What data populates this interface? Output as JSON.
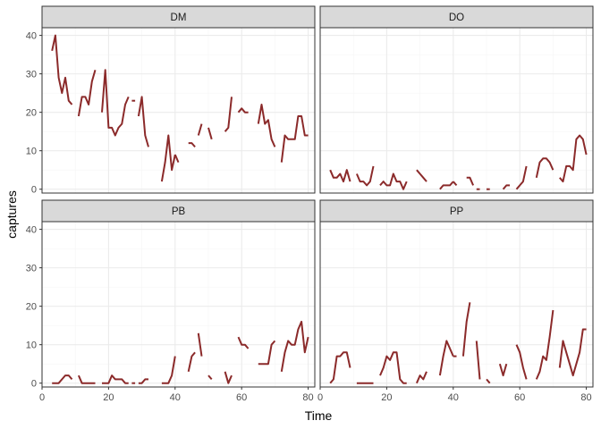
{
  "chart_data": {
    "type": "line",
    "facet_layout": "2x2 grid",
    "xlabel": "Time",
    "ylabel": "captures",
    "xlim": [
      0,
      82
    ],
    "ylim": [
      -1,
      42
    ],
    "x_ticks": [
      0,
      20,
      40,
      60,
      80
    ],
    "y_ticks": [
      0,
      10,
      20,
      30,
      40
    ],
    "grid": true,
    "legend": "none",
    "line_color": "#8B2A2A",
    "panels": [
      {
        "label": "DM",
        "segments": [
          {
            "x": [
              3,
              4,
              5,
              6,
              7,
              8,
              9
            ],
            "y": [
              36,
              40,
              29,
              25,
              29,
              23,
              22
            ]
          },
          {
            "x": [
              11,
              12,
              13,
              14,
              15,
              16
            ],
            "y": [
              19,
              24,
              24,
              22,
              28,
              31
            ]
          },
          {
            "x": [
              18,
              19,
              20,
              21,
              22,
              23,
              24,
              25,
              26
            ],
            "y": [
              20,
              31,
              16,
              16,
              14,
              16,
              17,
              22,
              24
            ]
          },
          {
            "x": [
              27,
              28
            ],
            "y": [
              23,
              23
            ]
          },
          {
            "x": [
              29,
              30,
              31,
              32
            ],
            "y": [
              19,
              24,
              14,
              11
            ]
          },
          {
            "x": [
              36,
              37,
              38,
              39,
              40
            ],
            "y": [
              2,
              7,
              14,
              5,
              9
            ]
          },
          {
            "x": [
              40,
              41
            ],
            "y": [
              9,
              7
            ]
          },
          {
            "x": [
              44,
              45,
              46
            ],
            "y": [
              12,
              12,
              11
            ]
          },
          {
            "x": [
              47,
              48
            ],
            "y": [
              14,
              17
            ]
          },
          {
            "x": [
              50,
              51
            ],
            "y": [
              16,
              13
            ]
          },
          {
            "x": [
              55,
              56,
              57
            ],
            "y": [
              15,
              16,
              24
            ]
          },
          {
            "x": [
              59,
              60,
              61,
              62
            ],
            "y": [
              20,
              21,
              20,
              20
            ]
          },
          {
            "x": [
              65,
              66,
              67,
              68,
              69,
              70
            ],
            "y": [
              17,
              22,
              17,
              18,
              13,
              11
            ]
          },
          {
            "x": [
              72,
              73,
              74,
              75,
              76,
              77,
              78,
              79,
              80
            ],
            "y": [
              7,
              14,
              13,
              13,
              13,
              19,
              19,
              14,
              14
            ]
          }
        ]
      },
      {
        "label": "DO",
        "segments": [
          {
            "x": [
              3,
              4,
              5,
              6,
              7,
              8,
              9
            ],
            "y": [
              5,
              3,
              3,
              4,
              2,
              5,
              2
            ]
          },
          {
            "x": [
              11,
              12,
              13,
              14,
              15,
              16
            ],
            "y": [
              4,
              2,
              2,
              1,
              2,
              6
            ]
          },
          {
            "x": [
              18,
              19,
              20,
              21,
              22,
              23,
              24,
              25,
              26
            ],
            "y": [
              1,
              2,
              1,
              1,
              4,
              2,
              2,
              0,
              2
            ]
          },
          {
            "x": [
              29,
              30,
              31,
              32
            ],
            "y": [
              5,
              4,
              3,
              2
            ]
          },
          {
            "x": [
              36,
              37,
              38,
              39,
              40
            ],
            "y": [
              0,
              1,
              1,
              1,
              2
            ]
          },
          {
            "x": [
              40,
              41
            ],
            "y": [
              2,
              1
            ]
          },
          {
            "x": [
              44,
              45,
              46
            ],
            "y": [
              3,
              3,
              1
            ]
          },
          {
            "x": [
              47,
              48
            ],
            "y": [
              0,
              0
            ]
          },
          {
            "x": [
              50,
              51
            ],
            "y": [
              0,
              0
            ]
          },
          {
            "x": [
              55,
              56,
              57
            ],
            "y": [
              0,
              1,
              1
            ]
          },
          {
            "x": [
              59,
              60,
              61,
              62
            ],
            "y": [
              0,
              1,
              2,
              6
            ]
          },
          {
            "x": [
              65,
              66,
              67,
              68,
              69,
              70
            ],
            "y": [
              3,
              7,
              8,
              8,
              7,
              5
            ]
          },
          {
            "x": [
              72,
              73,
              74,
              75,
              76,
              77,
              78,
              79,
              80
            ],
            "y": [
              3,
              2,
              6,
              6,
              5,
              13,
              14,
              13,
              9
            ]
          }
        ]
      },
      {
        "label": "PB",
        "segments": [
          {
            "x": [
              3,
              4,
              5,
              6,
              7,
              8,
              9
            ],
            "y": [
              0,
              0,
              0,
              1,
              2,
              2,
              1
            ]
          },
          {
            "x": [
              11,
              12,
              13,
              14,
              15,
              16
            ],
            "y": [
              2,
              0,
              0,
              0,
              0,
              0
            ]
          },
          {
            "x": [
              18,
              19,
              20,
              21,
              22,
              23,
              24,
              25,
              26
            ],
            "y": [
              0,
              0,
              0,
              2,
              1,
              1,
              1,
              0,
              0
            ]
          },
          {
            "x": [
              27,
              28
            ],
            "y": [
              0,
              0
            ]
          },
          {
            "x": [
              29,
              30,
              31,
              32
            ],
            "y": [
              0,
              0,
              1,
              1
            ]
          },
          {
            "x": [
              36,
              37,
              38,
              39,
              40
            ],
            "y": [
              0,
              0,
              0,
              2,
              7
            ]
          },
          {
            "x": [
              44,
              45,
              46
            ],
            "y": [
              3,
              7,
              8
            ]
          },
          {
            "x": [
              47,
              48
            ],
            "y": [
              13,
              7
            ]
          },
          {
            "x": [
              50,
              51
            ],
            "y": [
              2,
              1
            ]
          },
          {
            "x": [
              55,
              56,
              57
            ],
            "y": [
              3,
              0,
              2
            ]
          },
          {
            "x": [
              59,
              60,
              61,
              62
            ],
            "y": [
              12,
              10,
              10,
              9
            ]
          },
          {
            "x": [
              65,
              66,
              67,
              68,
              69,
              70
            ],
            "y": [
              5,
              5,
              5,
              5,
              10,
              11
            ]
          },
          {
            "x": [
              72,
              73,
              74,
              75,
              76,
              77,
              78,
              79,
              80
            ],
            "y": [
              3,
              8,
              11,
              10,
              10,
              14,
              16,
              8,
              12
            ]
          }
        ]
      },
      {
        "label": "PP",
        "segments": [
          {
            "x": [
              3,
              4,
              5,
              6,
              7,
              8,
              9
            ],
            "y": [
              0,
              1,
              7,
              7,
              8,
              8,
              4
            ]
          },
          {
            "x": [
              11,
              12,
              13,
              14,
              15,
              16
            ],
            "y": [
              0,
              0,
              0,
              0,
              0,
              0
            ]
          },
          {
            "x": [
              18,
              19,
              20,
              21,
              22,
              23,
              24,
              25,
              26
            ],
            "y": [
              2,
              4,
              7,
              6,
              8,
              8,
              1,
              0,
              0
            ]
          },
          {
            "x": [
              29,
              30,
              31,
              32
            ],
            "y": [
              0,
              2,
              1,
              3
            ]
          },
          {
            "x": [
              36,
              37,
              38,
              39,
              40
            ],
            "y": [
              2,
              7,
              11,
              9,
              7
            ]
          },
          {
            "x": [
              40,
              41
            ],
            "y": [
              7,
              7
            ]
          },
          {
            "x": [
              43,
              44,
              45
            ],
            "y": [
              7,
              16,
              21
            ]
          },
          {
            "x": [
              47,
              48
            ],
            "y": [
              11,
              1
            ]
          },
          {
            "x": [
              50,
              51
            ],
            "y": [
              1,
              0
            ]
          },
          {
            "x": [
              54,
              55,
              56
            ],
            "y": [
              5,
              2,
              5
            ]
          },
          {
            "x": [
              59,
              60,
              61,
              62
            ],
            "y": [
              10,
              8,
              4,
              1
            ]
          },
          {
            "x": [
              65,
              66,
              67,
              68,
              69,
              70
            ],
            "y": [
              1,
              3,
              7,
              6,
              12,
              19
            ]
          },
          {
            "x": [
              72,
              73,
              74,
              75,
              76,
              77,
              78,
              79,
              80
            ],
            "y": [
              4,
              11,
              8,
              5,
              2,
              5,
              8,
              14,
              14
            ]
          }
        ]
      }
    ]
  }
}
